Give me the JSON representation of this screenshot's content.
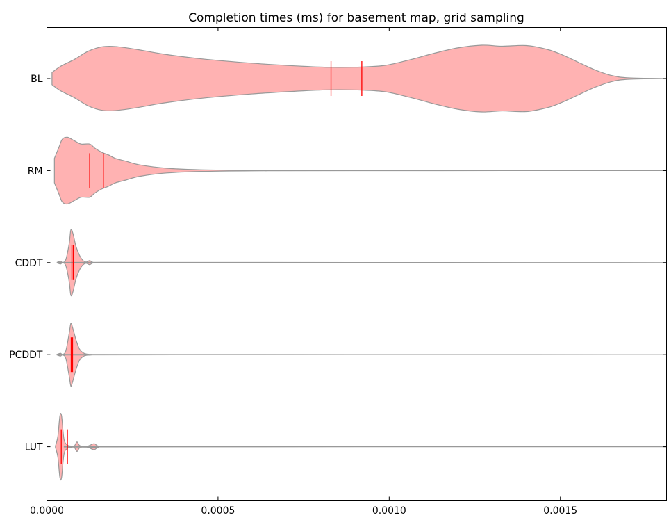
{
  "chart_data": {
    "type": "violin",
    "title": "Completion times (ms) for basement map, grid sampling",
    "xlabel": "",
    "ylabel": "",
    "xlim": [
      0,
      0.00181
    ],
    "x_ticks": [
      0.0,
      0.0005,
      0.001,
      0.0015
    ],
    "x_tick_labels": [
      "0.0000",
      "0.0005",
      "0.0010",
      "0.0015"
    ],
    "categories": [
      "BL",
      "RM",
      "CDDT",
      "PCDDT",
      "LUT"
    ],
    "grid": false,
    "fill_color": "#ffb2b2",
    "edge_color": "#999999",
    "marker_color": "#ff0000",
    "series": [
      {
        "category": "BL",
        "markers": [
          0.00083,
          0.00092
        ],
        "profile": [
          [
            1.5e-05,
            0.18
          ],
          [
            4e-05,
            0.36
          ],
          [
            8e-05,
            0.56
          ],
          [
            0.00012,
            0.8
          ],
          [
            0.00016,
            0.93
          ],
          [
            0.0002,
            0.94
          ],
          [
            0.00026,
            0.86
          ],
          [
            0.00034,
            0.72
          ],
          [
            0.00045,
            0.58
          ],
          [
            0.0006,
            0.45
          ],
          [
            0.00075,
            0.36
          ],
          [
            0.00083,
            0.33
          ],
          [
            0.00092,
            0.34
          ],
          [
            0.00099,
            0.39
          ],
          [
            0.00106,
            0.55
          ],
          [
            0.00113,
            0.74
          ],
          [
            0.0012,
            0.9
          ],
          [
            0.00127,
            0.98
          ],
          [
            0.00133,
            0.95
          ],
          [
            0.0014,
            0.97
          ],
          [
            0.00146,
            0.86
          ],
          [
            0.0015,
            0.72
          ],
          [
            0.00155,
            0.49
          ],
          [
            0.0016,
            0.26
          ],
          [
            0.00165,
            0.09
          ],
          [
            0.0017,
            0.02
          ],
          [
            0.00181,
            0.0
          ]
        ]
      },
      {
        "category": "RM",
        "markers": [
          0.000125,
          0.000165
        ],
        "profile": [
          [
            2.2e-05,
            0.36
          ],
          [
            3.5e-05,
            0.68
          ],
          [
            4.5e-05,
            0.92
          ],
          [
            6e-05,
            0.98
          ],
          [
            8e-05,
            0.88
          ],
          [
            0.0001,
            0.78
          ],
          [
            0.000125,
            0.78
          ],
          [
            0.00014,
            0.66
          ],
          [
            0.00016,
            0.54
          ],
          [
            0.00018,
            0.46
          ],
          [
            0.0002,
            0.36
          ],
          [
            0.00023,
            0.28
          ],
          [
            0.00027,
            0.17
          ],
          [
            0.00035,
            0.07
          ],
          [
            0.00045,
            0.025
          ],
          [
            0.0006,
            0.008
          ],
          [
            0.0009,
            0.003
          ],
          [
            0.00181,
            0.0
          ]
        ]
      },
      {
        "category": "CDDT",
        "markers": [
          7.3e-05,
          7.7e-05
        ],
        "profile": [
          [
            3e-05,
            0.01
          ],
          [
            4e-05,
            0.04
          ],
          [
            4.5e-05,
            0.01
          ],
          [
            5.5e-05,
            0.08
          ],
          [
            6.5e-05,
            0.55
          ],
          [
            7e-05,
            0.96
          ],
          [
            7.6e-05,
            0.86
          ],
          [
            8.5e-05,
            0.48
          ],
          [
            9.5e-05,
            0.22
          ],
          [
            0.000105,
            0.07
          ],
          [
            0.000115,
            0.02
          ],
          [
            0.000125,
            0.06
          ],
          [
            0.000135,
            0.01
          ],
          [
            0.00016,
            0.008
          ],
          [
            0.00181,
            0.0
          ]
        ]
      },
      {
        "category": "PCDDT",
        "markers": [
          7.1e-05,
          7.5e-05
        ],
        "profile": [
          [
            3e-05,
            0.01
          ],
          [
            4e-05,
            0.04
          ],
          [
            4.5e-05,
            0.01
          ],
          [
            5.5e-05,
            0.1
          ],
          [
            6.5e-05,
            0.62
          ],
          [
            7e-05,
            0.92
          ],
          [
            7.5e-05,
            0.8
          ],
          [
            8.5e-05,
            0.44
          ],
          [
            9.5e-05,
            0.17
          ],
          [
            0.000105,
            0.06
          ],
          [
            0.000115,
            0.02
          ],
          [
            0.00013,
            0.01
          ],
          [
            0.00016,
            0.006
          ],
          [
            0.00181,
            0.0
          ]
        ]
      },
      {
        "category": "LUT",
        "markers": [
          4.2e-05,
          6e-05
        ],
        "profile": [
          [
            2.5e-05,
            0.02
          ],
          [
            3.2e-05,
            0.3
          ],
          [
            3.8e-05,
            0.9
          ],
          [
            4.3e-05,
            0.9
          ],
          [
            5e-05,
            0.22
          ],
          [
            6e-05,
            0.05
          ],
          [
            7e-05,
            0.02
          ],
          [
            8e-05,
            0.02
          ],
          [
            8.8e-05,
            0.14
          ],
          [
            9.5e-05,
            0.04
          ],
          [
            0.000105,
            0.01
          ],
          [
            0.00012,
            0.02
          ],
          [
            0.000138,
            0.09
          ],
          [
            0.00015,
            0.02
          ],
          [
            0.00018,
            0.005
          ],
          [
            0.00181,
            0.0
          ]
        ]
      }
    ]
  }
}
